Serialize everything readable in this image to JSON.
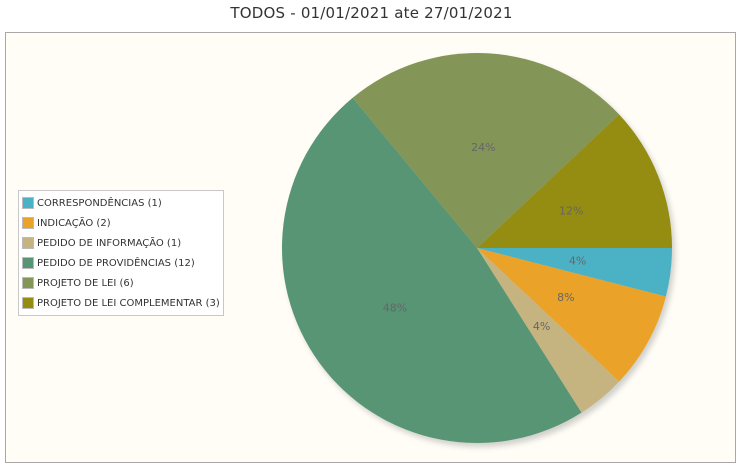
{
  "title": "TODOS - 01/01/2021 ate 27/01/2021",
  "chart_data": {
    "type": "pie",
    "categories": [
      "CORRESPONDÊNCIAS (1)",
      "INDICAÇÃO (2)",
      "PEDIDO DE INFORMAÇÃO (1)",
      "PEDIDO DE PROVIDÊNCIAS (12)",
      "PROJETO DE LEI (6)",
      "PROJETO DE LEI COMPLEMENTAR (3)"
    ],
    "values": [
      1,
      2,
      1,
      12,
      6,
      3
    ],
    "percent_labels": [
      "4%",
      "8%",
      "4%",
      "48%",
      "24%",
      "12%"
    ],
    "colors": [
      "#4bb2c5",
      "#eaa228",
      "#c5b47f",
      "#579575",
      "#839557",
      "#958c12"
    ],
    "legend_position": "left"
  }
}
